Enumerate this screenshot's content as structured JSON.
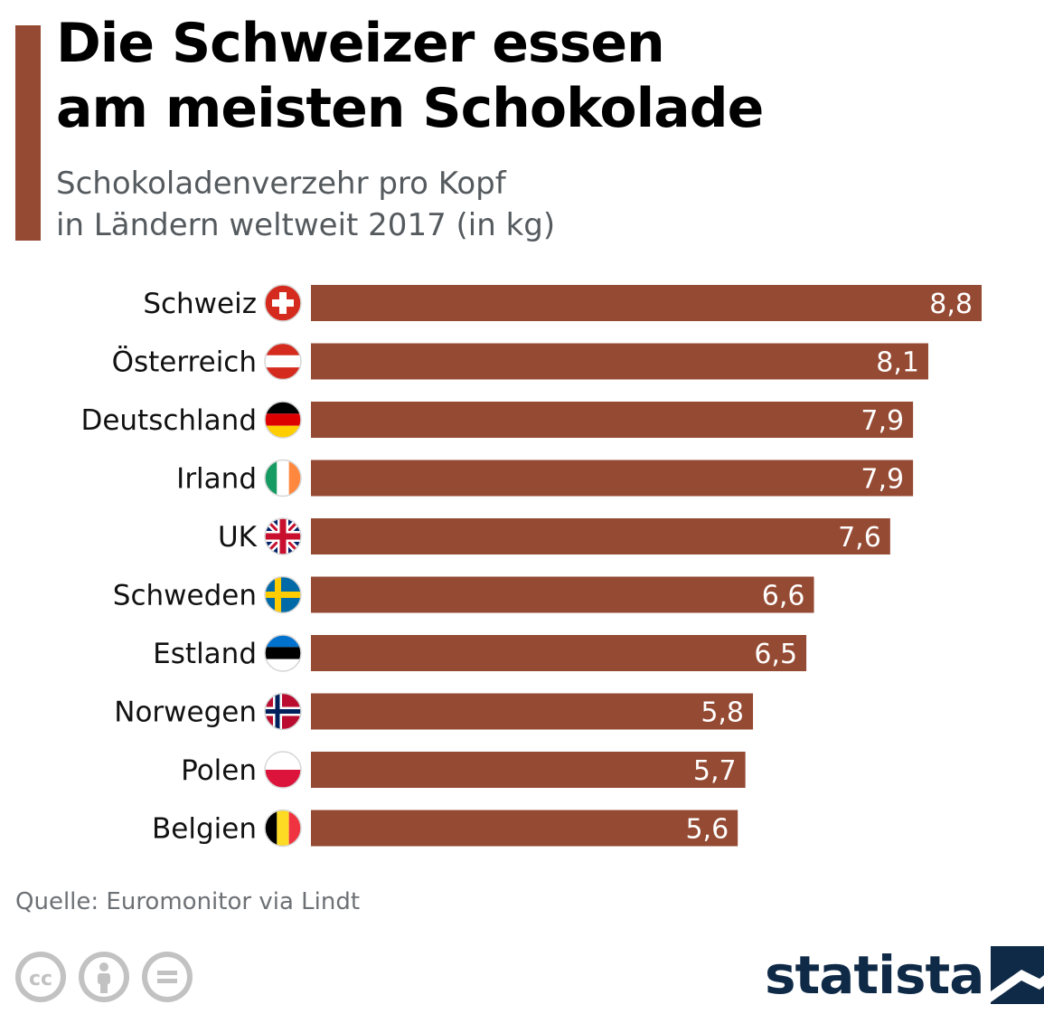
{
  "title_lines": [
    "Die Schweizer essen",
    "am meisten Schokolade"
  ],
  "subtitle_lines": [
    "Schokoladenverzehr pro Kopf",
    "in Ländern weltweit 2017 (in kg)"
  ],
  "source": "Quelle: Euromonitor via Lindt",
  "brand": "statista",
  "colors": {
    "bar": "#954a33",
    "accent": "#954a33",
    "value_label": "#ffffff",
    "brand": "#0f2a47"
  },
  "chart_data": {
    "type": "bar",
    "orientation": "horizontal",
    "categories": [
      "Schweiz",
      "Österreich",
      "Deutschland",
      "Irland",
      "UK",
      "Schweden",
      "Estland",
      "Norwegen",
      "Polen",
      "Belgien"
    ],
    "values": [
      8.8,
      8.1,
      7.9,
      7.9,
      7.6,
      6.6,
      6.5,
      5.8,
      5.7,
      5.6
    ],
    "value_labels": [
      "8,8",
      "8,1",
      "7,9",
      "7,9",
      "7,6",
      "6,6",
      "6,5",
      "5,8",
      "5,7",
      "5,6"
    ],
    "flags": [
      "switzerland-flag-icon",
      "austria-flag-icon",
      "germany-flag-icon",
      "ireland-flag-icon",
      "uk-flag-icon",
      "sweden-flag-icon",
      "estonia-flag-icon",
      "norway-flag-icon",
      "poland-flag-icon",
      "belgium-flag-icon"
    ],
    "xlim": [
      0,
      8.8
    ],
    "grid": false,
    "legend": "none"
  },
  "footer_icons": [
    "cc-icon",
    "attribution-icon",
    "no-derivatives-icon"
  ]
}
